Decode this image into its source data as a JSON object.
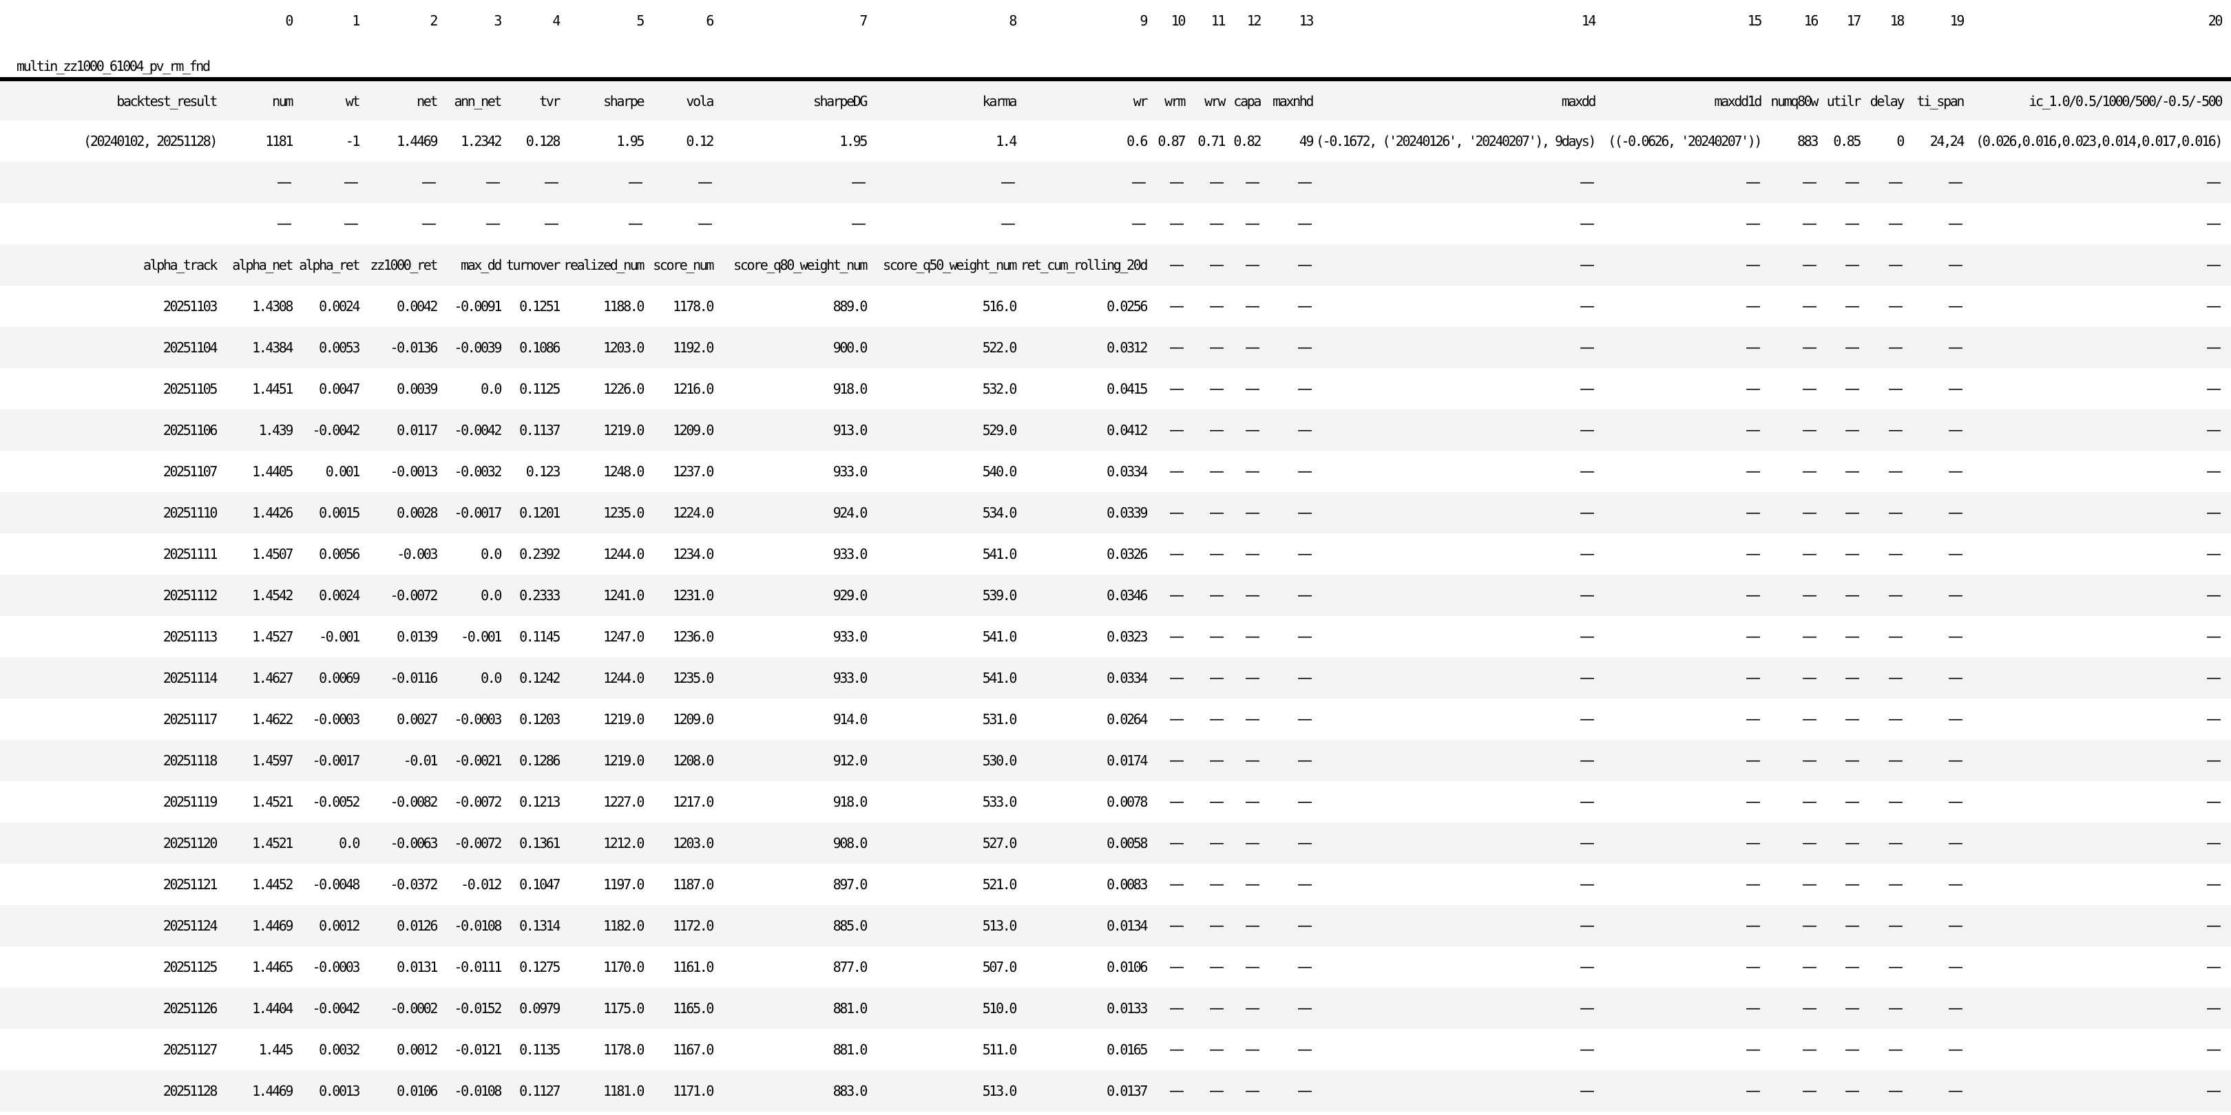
{
  "page": {
    "background_color": "#ffffff",
    "text_color": "#000000",
    "stripe_color": "#f4f4f4",
    "rule_color": "#000000",
    "missing_value_glyph": "—"
  },
  "table": {
    "title": "multin_zz1000_61004_pv_rm_fnd",
    "index_header": "backtest_result",
    "column_indices": [
      "0",
      "1",
      "2",
      "3",
      "4",
      "5",
      "6",
      "7",
      "8",
      "9",
      "10",
      "11",
      "12",
      "13",
      "14",
      "15",
      "16",
      "17",
      "18",
      "19",
      "20"
    ],
    "columns": [
      "num",
      "wt",
      "net",
      "ann_net",
      "tvr",
      "sharpe",
      "vola",
      "sharpeDG",
      "karma",
      "wr",
      "wrm",
      "wrw",
      "capa",
      "maxnhd",
      "maxdd",
      "maxdd1d",
      "numq80w",
      "utilr",
      "delay",
      "ti_span",
      "ic_1.0/0.5/1000/500/-0.5/-500"
    ],
    "sub_columns": [
      "alpha_track",
      "alpha_net",
      "alpha_ret",
      "zz1000_ret",
      "max_dd",
      "turnover",
      "realized_num",
      "score_num",
      "score_q80_weight_num",
      "score_q50_weight_num",
      "ret_cum_rolling_20d"
    ],
    "rows": [
      {
        "name": "column-index-row",
        "type": "numbers",
        "shade": "white",
        "cells": [
          "",
          "0",
          "1",
          "2",
          "3",
          "4",
          "5",
          "6",
          "7",
          "8",
          "9",
          "10",
          "11",
          "12",
          "13",
          "14",
          "15",
          "16",
          "17",
          "18",
          "19",
          "20"
        ]
      },
      {
        "name": "title-row",
        "type": "title",
        "shade": "white",
        "cells": [
          "multin_zz1000_61004_pv_rm_fnd"
        ]
      },
      {
        "name": "column-header-row",
        "type": "header",
        "shade": "gray",
        "cells": [
          "backtest_result",
          "num",
          "wt",
          "net",
          "ann_net",
          "tvr",
          "sharpe",
          "vola",
          "sharpeDG",
          "karma",
          "wr",
          "wrm",
          "wrw",
          "capa",
          "maxnhd",
          "maxdd",
          "maxdd1d",
          "numq80w",
          "utilr",
          "delay",
          "ti_span",
          "ic_1.0/0.5/1000/500/-0.5/-500"
        ]
      },
      {
        "name": "backtest-summary-row",
        "type": "data",
        "shade": "white",
        "cells": [
          "(20240102, 20251128)",
          "1181",
          "-1",
          "1.4469",
          "1.2342",
          "0.128",
          "1.95",
          "0.12",
          "1.95",
          "1.4",
          "0.6",
          "0.87",
          "0.71",
          "0.82",
          "49",
          "(-0.1672, ('20240126', '20240207'), 9days)",
          "((-0.0626, '20240207'))",
          "883",
          "0.85",
          "0",
          "24,24",
          "(0.026,0.016,0.023,0.014,0.017,0.016)"
        ]
      },
      {
        "name": "spacer-row-1",
        "type": "data",
        "shade": "gray",
        "cells": [
          "",
          "—",
          "—",
          "—",
          "—",
          "—",
          "—",
          "—",
          "—",
          "—",
          "—",
          "—",
          "—",
          "—",
          "—",
          "—",
          "—",
          "—",
          "—",
          "—",
          "—",
          "—"
        ]
      },
      {
        "name": "spacer-row-2",
        "type": "data",
        "shade": "white",
        "cells": [
          "",
          "—",
          "—",
          "—",
          "—",
          "—",
          "—",
          "—",
          "—",
          "—",
          "—",
          "—",
          "—",
          "—",
          "—",
          "—",
          "—",
          "—",
          "—",
          "—",
          "—",
          "—"
        ]
      },
      {
        "name": "alpha-track-header-row",
        "type": "data",
        "shade": "gray",
        "cells": [
          "alpha_track",
          "alpha_net",
          "alpha_ret",
          "zz1000_ret",
          "max_dd",
          "turnover",
          "realized_num",
          "score_num",
          "score_q80_weight_num",
          "score_q50_weight_num",
          "ret_cum_rolling_20d",
          "—",
          "—",
          "—",
          "—",
          "—",
          "—",
          "—",
          "—",
          "—",
          "—",
          "—"
        ]
      },
      {
        "name": "date-row-20251103",
        "type": "data",
        "shade": "white",
        "cells": [
          "20251103",
          "1.4308",
          "0.0024",
          "0.0042",
          "-0.0091",
          "0.1251",
          "1188.0",
          "1178.0",
          "889.0",
          "516.0",
          "0.0256",
          "—",
          "—",
          "—",
          "—",
          "—",
          "—",
          "—",
          "—",
          "—",
          "—",
          "—"
        ]
      },
      {
        "name": "date-row-20251104",
        "type": "data",
        "shade": "gray",
        "cells": [
          "20251104",
          "1.4384",
          "0.0053",
          "-0.0136",
          "-0.0039",
          "0.1086",
          "1203.0",
          "1192.0",
          "900.0",
          "522.0",
          "0.0312",
          "—",
          "—",
          "—",
          "—",
          "—",
          "—",
          "—",
          "—",
          "—",
          "—",
          "—"
        ]
      },
      {
        "name": "date-row-20251105",
        "type": "data",
        "shade": "white",
        "cells": [
          "20251105",
          "1.4451",
          "0.0047",
          "0.0039",
          "0.0",
          "0.1125",
          "1226.0",
          "1216.0",
          "918.0",
          "532.0",
          "0.0415",
          "—",
          "—",
          "—",
          "—",
          "—",
          "—",
          "—",
          "—",
          "—",
          "—",
          "—"
        ]
      },
      {
        "name": "date-row-20251106",
        "type": "data",
        "shade": "gray",
        "cells": [
          "20251106",
          "1.439",
          "-0.0042",
          "0.0117",
          "-0.0042",
          "0.1137",
          "1219.0",
          "1209.0",
          "913.0",
          "529.0",
          "0.0412",
          "—",
          "—",
          "—",
          "—",
          "—",
          "—",
          "—",
          "—",
          "—",
          "—",
          "—"
        ]
      },
      {
        "name": "date-row-20251107",
        "type": "data",
        "shade": "white",
        "cells": [
          "20251107",
          "1.4405",
          "0.001",
          "-0.0013",
          "-0.0032",
          "0.123",
          "1248.0",
          "1237.0",
          "933.0",
          "540.0",
          "0.0334",
          "—",
          "—",
          "—",
          "—",
          "—",
          "—",
          "—",
          "—",
          "—",
          "—",
          "—"
        ]
      },
      {
        "name": "date-row-20251110",
        "type": "data",
        "shade": "gray",
        "cells": [
          "20251110",
          "1.4426",
          "0.0015",
          "0.0028",
          "-0.0017",
          "0.1201",
          "1235.0",
          "1224.0",
          "924.0",
          "534.0",
          "0.0339",
          "—",
          "—",
          "—",
          "—",
          "—",
          "—",
          "—",
          "—",
          "—",
          "—",
          "—"
        ]
      },
      {
        "name": "date-row-20251111",
        "type": "data",
        "shade": "white",
        "cells": [
          "20251111",
          "1.4507",
          "0.0056",
          "-0.003",
          "0.0",
          "0.2392",
          "1244.0",
          "1234.0",
          "933.0",
          "541.0",
          "0.0326",
          "—",
          "—",
          "—",
          "—",
          "—",
          "—",
          "—",
          "—",
          "—",
          "—",
          "—"
        ]
      },
      {
        "name": "date-row-20251112",
        "type": "data",
        "shade": "gray",
        "cells": [
          "20251112",
          "1.4542",
          "0.0024",
          "-0.0072",
          "0.0",
          "0.2333",
          "1241.0",
          "1231.0",
          "929.0",
          "539.0",
          "0.0346",
          "—",
          "—",
          "—",
          "—",
          "—",
          "—",
          "—",
          "—",
          "—",
          "—",
          "—"
        ]
      },
      {
        "name": "date-row-20251113",
        "type": "data",
        "shade": "white",
        "cells": [
          "20251113",
          "1.4527",
          "-0.001",
          "0.0139",
          "-0.001",
          "0.1145",
          "1247.0",
          "1236.0",
          "933.0",
          "541.0",
          "0.0323",
          "—",
          "—",
          "—",
          "—",
          "—",
          "—",
          "—",
          "—",
          "—",
          "—",
          "—"
        ]
      },
      {
        "name": "date-row-20251114",
        "type": "data",
        "shade": "gray",
        "cells": [
          "20251114",
          "1.4627",
          "0.0069",
          "-0.0116",
          "0.0",
          "0.1242",
          "1244.0",
          "1235.0",
          "933.0",
          "541.0",
          "0.0334",
          "—",
          "—",
          "—",
          "—",
          "—",
          "—",
          "—",
          "—",
          "—",
          "—",
          "—"
        ]
      },
      {
        "name": "date-row-20251117",
        "type": "data",
        "shade": "white",
        "cells": [
          "20251117",
          "1.4622",
          "-0.0003",
          "0.0027",
          "-0.0003",
          "0.1203",
          "1219.0",
          "1209.0",
          "914.0",
          "531.0",
          "0.0264",
          "—",
          "—",
          "—",
          "—",
          "—",
          "—",
          "—",
          "—",
          "—",
          "—",
          "—"
        ]
      },
      {
        "name": "date-row-20251118",
        "type": "data",
        "shade": "gray",
        "cells": [
          "20251118",
          "1.4597",
          "-0.0017",
          "-0.01",
          "-0.0021",
          "0.1286",
          "1219.0",
          "1208.0",
          "912.0",
          "530.0",
          "0.0174",
          "—",
          "—",
          "—",
          "—",
          "—",
          "—",
          "—",
          "—",
          "—",
          "—",
          "—"
        ]
      },
      {
        "name": "date-row-20251119",
        "type": "data",
        "shade": "white",
        "cells": [
          "20251119",
          "1.4521",
          "-0.0052",
          "-0.0082",
          "-0.0072",
          "0.1213",
          "1227.0",
          "1217.0",
          "918.0",
          "533.0",
          "0.0078",
          "—",
          "—",
          "—",
          "—",
          "—",
          "—",
          "—",
          "—",
          "—",
          "—",
          "—"
        ]
      },
      {
        "name": "date-row-20251120",
        "type": "data",
        "shade": "gray",
        "cells": [
          "20251120",
          "1.4521",
          "0.0",
          "-0.0063",
          "-0.0072",
          "0.1361",
          "1212.0",
          "1203.0",
          "908.0",
          "527.0",
          "0.0058",
          "—",
          "—",
          "—",
          "—",
          "—",
          "—",
          "—",
          "—",
          "—",
          "—",
          "—"
        ]
      },
      {
        "name": "date-row-20251121",
        "type": "data",
        "shade": "white",
        "cells": [
          "20251121",
          "1.4452",
          "-0.0048",
          "-0.0372",
          "-0.012",
          "0.1047",
          "1197.0",
          "1187.0",
          "897.0",
          "521.0",
          "0.0083",
          "—",
          "—",
          "—",
          "—",
          "—",
          "—",
          "—",
          "—",
          "—",
          "—",
          "—"
        ]
      },
      {
        "name": "date-row-20251124",
        "type": "data",
        "shade": "gray",
        "cells": [
          "20251124",
          "1.4469",
          "0.0012",
          "0.0126",
          "-0.0108",
          "0.1314",
          "1182.0",
          "1172.0",
          "885.0",
          "513.0",
          "0.0134",
          "—",
          "—",
          "—",
          "—",
          "—",
          "—",
          "—",
          "—",
          "—",
          "—",
          "—"
        ]
      },
      {
        "name": "date-row-20251125",
        "type": "data",
        "shade": "white",
        "cells": [
          "20251125",
          "1.4465",
          "-0.0003",
          "0.0131",
          "-0.0111",
          "0.1275",
          "1170.0",
          "1161.0",
          "877.0",
          "507.0",
          "0.0106",
          "—",
          "—",
          "—",
          "—",
          "—",
          "—",
          "—",
          "—",
          "—",
          "—",
          "—"
        ]
      },
      {
        "name": "date-row-20251126",
        "type": "data",
        "shade": "gray",
        "cells": [
          "20251126",
          "1.4404",
          "-0.0042",
          "-0.0002",
          "-0.0152",
          "0.0979",
          "1175.0",
          "1165.0",
          "881.0",
          "510.0",
          "0.0133",
          "—",
          "—",
          "—",
          "—",
          "—",
          "—",
          "—",
          "—",
          "—",
          "—",
          "—"
        ]
      },
      {
        "name": "date-row-20251127",
        "type": "data",
        "shade": "white",
        "cells": [
          "20251127",
          "1.445",
          "0.0032",
          "0.0012",
          "-0.0121",
          "0.1135",
          "1178.0",
          "1167.0",
          "881.0",
          "511.0",
          "0.0165",
          "—",
          "—",
          "—",
          "—",
          "—",
          "—",
          "—",
          "—",
          "—",
          "—",
          "—"
        ]
      },
      {
        "name": "date-row-20251128",
        "type": "data",
        "shade": "gray",
        "cells": [
          "20251128",
          "1.4469",
          "0.0013",
          "0.0106",
          "-0.0108",
          "0.1127",
          "1181.0",
          "1171.0",
          "883.0",
          "513.0",
          "0.0137",
          "—",
          "—",
          "—",
          "—",
          "—",
          "—",
          "—",
          "—",
          "—",
          "—",
          "—"
        ]
      }
    ]
  }
}
